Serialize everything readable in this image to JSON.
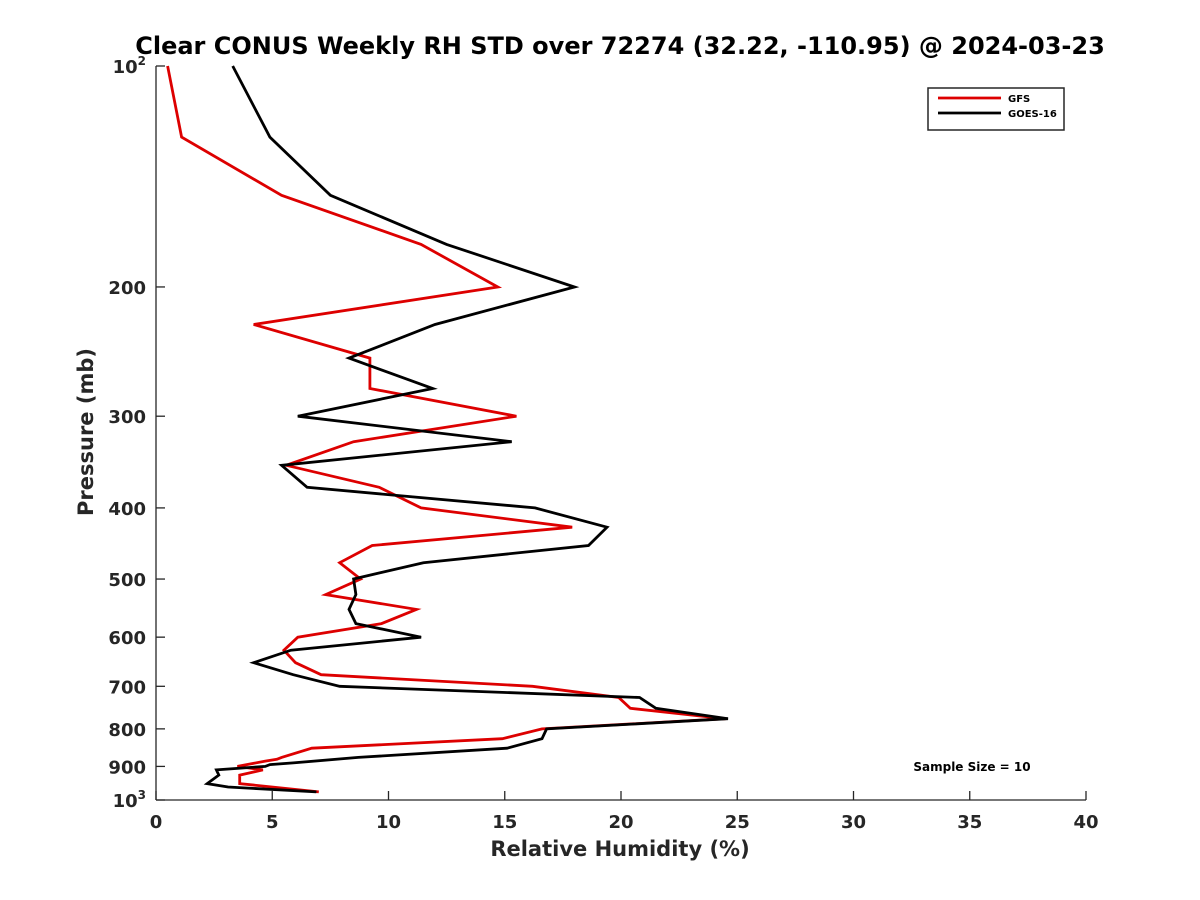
{
  "chart_data": {
    "type": "line",
    "title": "Clear CONUS Weekly RH STD over 72274 (32.22, -110.95) @ 2024-03-23",
    "xlabel": "Relative Humidity (%)",
    "ylabel": "Pressure (mb)",
    "xlim": [
      0,
      40
    ],
    "ylim": [
      100,
      1000
    ],
    "y_scale": "log",
    "y_reversed": true,
    "grid": false,
    "legend_position": "top-right",
    "x_ticks": [
      0,
      5,
      10,
      15,
      20,
      25,
      30,
      35,
      40
    ],
    "y_ticks": [
      {
        "value": 100,
        "base": "10",
        "exp": "2"
      },
      {
        "value": 200,
        "label": "200"
      },
      {
        "value": 300,
        "label": "300"
      },
      {
        "value": 400,
        "label": "400"
      },
      {
        "value": 500,
        "label": "500"
      },
      {
        "value": 600,
        "label": "600"
      },
      {
        "value": 700,
        "label": "700"
      },
      {
        "value": 800,
        "label": "800"
      },
      {
        "value": 900,
        "label": "900"
      },
      {
        "value": 1000,
        "base": "10",
        "exp": "3"
      }
    ],
    "series": [
      {
        "name": "GFS",
        "color": "#dd0000",
        "points": [
          [
            0.5,
            100
          ],
          [
            1.1,
            125
          ],
          [
            5.4,
            150
          ],
          [
            11.4,
            175
          ],
          [
            14.7,
            200
          ],
          [
            4.2,
            225
          ],
          [
            9.2,
            250
          ],
          [
            9.2,
            275
          ],
          [
            15.5,
            300
          ],
          [
            8.5,
            325
          ],
          [
            5.6,
            350
          ],
          [
            9.6,
            375
          ],
          [
            11.4,
            400
          ],
          [
            17.9,
            425
          ],
          [
            9.3,
            450
          ],
          [
            7.9,
            475
          ],
          [
            8.8,
            500
          ],
          [
            7.3,
            525
          ],
          [
            11.2,
            550
          ],
          [
            9.7,
            575
          ],
          [
            6.1,
            600
          ],
          [
            5.5,
            625
          ],
          [
            6.0,
            650
          ],
          [
            7.1,
            675
          ],
          [
            16.2,
            700
          ],
          [
            19.9,
            725
          ],
          [
            20.4,
            750
          ],
          [
            24.5,
            775
          ],
          [
            16.6,
            800
          ],
          [
            14.9,
            825
          ],
          [
            6.7,
            850
          ],
          [
            5.4,
            875
          ],
          [
            5.2,
            880
          ],
          [
            4.7,
            885
          ],
          [
            3.5,
            900
          ],
          [
            4.6,
            910
          ],
          [
            3.6,
            925
          ],
          [
            3.6,
            950
          ],
          [
            7.0,
            975
          ]
        ]
      },
      {
        "name": "GOES-16",
        "color": "#000000",
        "points": [
          [
            3.3,
            100
          ],
          [
            4.9,
            125
          ],
          [
            7.5,
            150
          ],
          [
            12.5,
            175
          ],
          [
            18.0,
            200
          ],
          [
            12.0,
            225
          ],
          [
            8.3,
            250
          ],
          [
            11.9,
            275
          ],
          [
            6.1,
            300
          ],
          [
            15.3,
            325
          ],
          [
            5.4,
            350
          ],
          [
            6.5,
            375
          ],
          [
            16.3,
            400
          ],
          [
            19.4,
            425
          ],
          [
            18.6,
            450
          ],
          [
            11.5,
            475
          ],
          [
            8.5,
            500
          ],
          [
            8.6,
            525
          ],
          [
            8.3,
            550
          ],
          [
            8.6,
            575
          ],
          [
            11.4,
            600
          ],
          [
            5.8,
            625
          ],
          [
            4.2,
            650
          ],
          [
            5.9,
            675
          ],
          [
            7.9,
            700
          ],
          [
            20.8,
            725
          ],
          [
            21.5,
            750
          ],
          [
            24.6,
            775
          ],
          [
            16.8,
            800
          ],
          [
            16.6,
            825
          ],
          [
            15.1,
            850
          ],
          [
            8.7,
            875
          ],
          [
            5.9,
            890
          ],
          [
            4.9,
            895
          ],
          [
            4.7,
            900
          ],
          [
            2.6,
            910
          ],
          [
            2.7,
            925
          ],
          [
            2.2,
            950
          ],
          [
            3.1,
            960
          ],
          [
            6.9,
            975
          ]
        ]
      }
    ],
    "annotations": [
      "Sample Size = 10"
    ]
  }
}
